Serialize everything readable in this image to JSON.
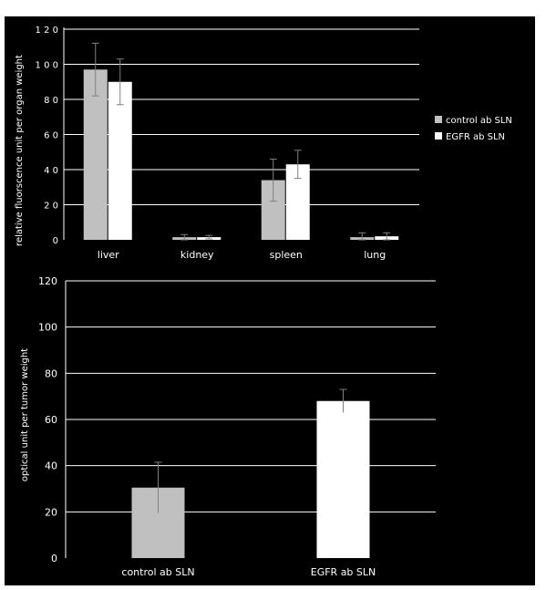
{
  "chart_data": [
    {
      "type": "bar",
      "title": "",
      "xlabel": "",
      "ylabel": "relative fluorscence unit per organ weight",
      "categories": [
        "liver",
        "kidney",
        "spleen",
        "lung"
      ],
      "series": [
        {
          "name": "control ab SLN",
          "color": "#c0c0c0",
          "values": [
            97,
            1.5,
            34,
            1.5
          ],
          "errors": [
            15,
            1.5,
            12,
            2.5
          ]
        },
        {
          "name": "EGFR ab SLN",
          "color": "#ffffff",
          "values": [
            90,
            1.5,
            43,
            2
          ],
          "errors": [
            13,
            1,
            8,
            2
          ]
        }
      ],
      "ylim": [
        0,
        120
      ],
      "yticks": [
        "0",
        "2 0",
        "4 0",
        "6 0",
        "8 0",
        "1 0 0",
        "1 2 0"
      ],
      "grid": true,
      "legend": "right",
      "background": "#000000",
      "foreground": "#ffffff"
    },
    {
      "type": "bar",
      "title": "",
      "xlabel": "",
      "ylabel": "optical unit per tumor weight",
      "categories": [
        "control ab SLN",
        "EGFR ab SLN"
      ],
      "series": [
        {
          "values": [
            30.5,
            68
          ],
          "errors": [
            11,
            5
          ],
          "colors": [
            "#c0c0c0",
            "#ffffff"
          ]
        }
      ],
      "ylim": [
        0,
        120
      ],
      "yticks": [
        "0",
        "20",
        "40",
        "60",
        "80",
        "100",
        "120"
      ],
      "grid": true,
      "legend": "none",
      "background": "#000000",
      "foreground": "#ffffff"
    }
  ]
}
